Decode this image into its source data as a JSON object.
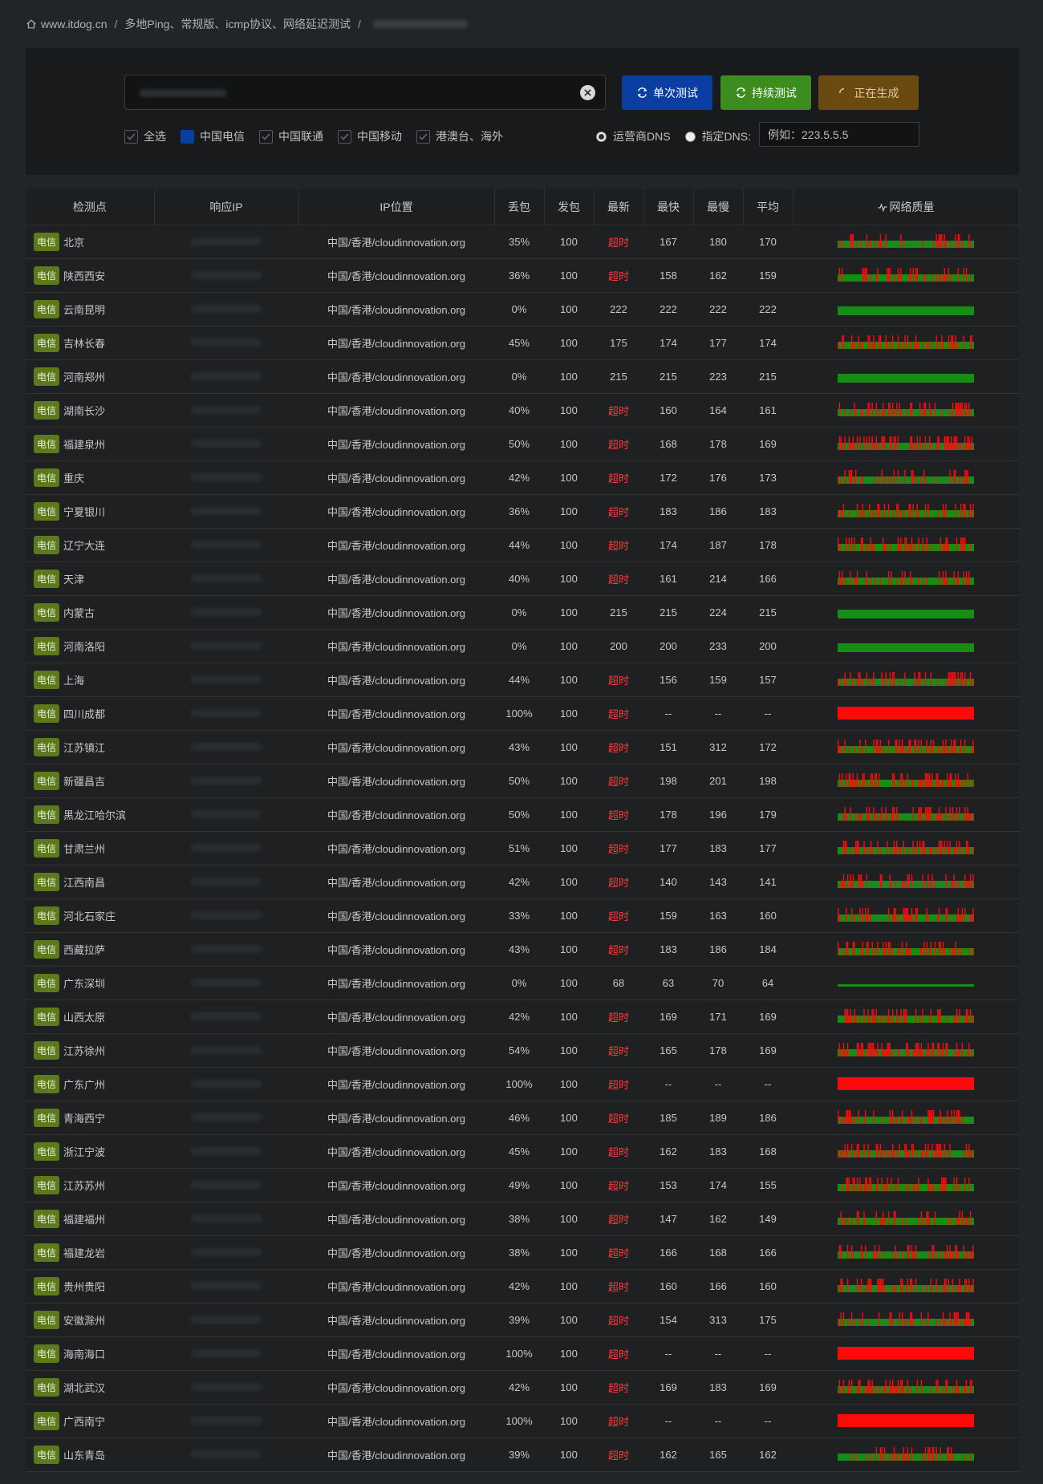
{
  "breadcrumb": {
    "home_icon": "home-icon",
    "items": [
      "www.itdog.cn",
      "多地Ping、常规版、icmp协议、网络延迟测试"
    ]
  },
  "search": {
    "value": "",
    "placeholder": ""
  },
  "buttons": {
    "single": "单次测试",
    "continuous": "持续测试",
    "generating": "正在生成"
  },
  "filters": {
    "items": [
      {
        "label": "全选",
        "checked": true,
        "style": "check"
      },
      {
        "label": "中国电信",
        "checked": true,
        "style": "filled"
      },
      {
        "label": "中国联通",
        "checked": true,
        "style": "check"
      },
      {
        "label": "中国移动",
        "checked": true,
        "style": "check"
      },
      {
        "label": "港澳台、海外",
        "checked": true,
        "style": "check"
      }
    ]
  },
  "dns": {
    "isp_label": "运营商DNS",
    "custom_label": "指定DNS:",
    "selected": "isp",
    "placeholder": "例如：223.5.5.5"
  },
  "table": {
    "headers": [
      "检测点",
      "响应IP",
      "IP位置",
      "丢包",
      "发包",
      "最新",
      "最快",
      "最慢",
      "平均",
      "网络质量"
    ],
    "badge": "电信",
    "rows": [
      {
        "city": "北京",
        "loc": "中国/香港/cloudinnovation.org",
        "loss": "35%",
        "sent": "100",
        "latest": "超时",
        "min": "167",
        "max": "180",
        "avg": "170",
        "quality": 0.35
      },
      {
        "city": "陕西西安",
        "loc": "中国/香港/cloudinnovation.org",
        "loss": "36%",
        "sent": "100",
        "latest": "超时",
        "min": "158",
        "max": "162",
        "avg": "159",
        "quality": 0.36
      },
      {
        "city": "云南昆明",
        "loc": "中国/香港/cloudinnovation.org",
        "loss": "0%",
        "sent": "100",
        "latest": "222",
        "min": "222",
        "max": "222",
        "avg": "222",
        "quality": 0
      },
      {
        "city": "吉林长春",
        "loc": "中国/香港/cloudinnovation.org",
        "loss": "45%",
        "sent": "100",
        "latest": "175",
        "min": "174",
        "max": "177",
        "avg": "174",
        "quality": 0.45
      },
      {
        "city": "河南郑州",
        "loc": "中国/香港/cloudinnovation.org",
        "loss": "0%",
        "sent": "100",
        "latest": "215",
        "min": "215",
        "max": "223",
        "avg": "215",
        "quality": 0
      },
      {
        "city": "湖南长沙",
        "loc": "中国/香港/cloudinnovation.org",
        "loss": "40%",
        "sent": "100",
        "latest": "超时",
        "min": "160",
        "max": "164",
        "avg": "161",
        "quality": 0.4
      },
      {
        "city": "福建泉州",
        "loc": "中国/香港/cloudinnovation.org",
        "loss": "50%",
        "sent": "100",
        "latest": "超时",
        "min": "168",
        "max": "178",
        "avg": "169",
        "quality": 0.5
      },
      {
        "city": "重庆",
        "loc": "中国/香港/cloudinnovation.org",
        "loss": "42%",
        "sent": "100",
        "latest": "超时",
        "min": "172",
        "max": "176",
        "avg": "173",
        "quality": 0.42
      },
      {
        "city": "宁夏银川",
        "loc": "中国/香港/cloudinnovation.org",
        "loss": "36%",
        "sent": "100",
        "latest": "超时",
        "min": "183",
        "max": "186",
        "avg": "183",
        "quality": 0.36
      },
      {
        "city": "辽宁大连",
        "loc": "中国/香港/cloudinnovation.org",
        "loss": "44%",
        "sent": "100",
        "latest": "超时",
        "min": "174",
        "max": "187",
        "avg": "178",
        "quality": 0.44
      },
      {
        "city": "天津",
        "loc": "中国/香港/cloudinnovation.org",
        "loss": "40%",
        "sent": "100",
        "latest": "超时",
        "min": "161",
        "max": "214",
        "avg": "166",
        "quality": 0.4
      },
      {
        "city": "内蒙古",
        "loc": "中国/香港/cloudinnovation.org",
        "loss": "0%",
        "sent": "100",
        "latest": "215",
        "min": "215",
        "max": "224",
        "avg": "215",
        "quality": 0
      },
      {
        "city": "河南洛阳",
        "loc": "中国/香港/cloudinnovation.org",
        "loss": "0%",
        "sent": "100",
        "latest": "200",
        "min": "200",
        "max": "233",
        "avg": "200",
        "quality": 0
      },
      {
        "city": "上海",
        "loc": "中国/香港/cloudinnovation.org",
        "loss": "44%",
        "sent": "100",
        "latest": "超时",
        "min": "156",
        "max": "159",
        "avg": "157",
        "quality": 0.44
      },
      {
        "city": "四川成都",
        "loc": "中国/香港/cloudinnovation.org",
        "loss": "100%",
        "sent": "100",
        "latest": "超时",
        "min": "--",
        "max": "--",
        "avg": "--",
        "quality": 1
      },
      {
        "city": "江苏镇江",
        "loc": "中国/香港/cloudinnovation.org",
        "loss": "43%",
        "sent": "100",
        "latest": "超时",
        "min": "151",
        "max": "312",
        "avg": "172",
        "quality": 0.43
      },
      {
        "city": "新疆昌吉",
        "loc": "中国/香港/cloudinnovation.org",
        "loss": "50%",
        "sent": "100",
        "latest": "超时",
        "min": "198",
        "max": "201",
        "avg": "198",
        "quality": 0.5
      },
      {
        "city": "黑龙江哈尔滨",
        "loc": "中国/香港/cloudinnovation.org",
        "loss": "50%",
        "sent": "100",
        "latest": "超时",
        "min": "178",
        "max": "196",
        "avg": "179",
        "quality": 0.5
      },
      {
        "city": "甘肃兰州",
        "loc": "中国/香港/cloudinnovation.org",
        "loss": "51%",
        "sent": "100",
        "latest": "超时",
        "min": "177",
        "max": "183",
        "avg": "177",
        "quality": 0.51
      },
      {
        "city": "江西南昌",
        "loc": "中国/香港/cloudinnovation.org",
        "loss": "42%",
        "sent": "100",
        "latest": "超时",
        "min": "140",
        "max": "143",
        "avg": "141",
        "quality": 0.42
      },
      {
        "city": "河北石家庄",
        "loc": "中国/香港/cloudinnovation.org",
        "loss": "33%",
        "sent": "100",
        "latest": "超时",
        "min": "159",
        "max": "163",
        "avg": "160",
        "quality": 0.33
      },
      {
        "city": "西藏拉萨",
        "loc": "中国/香港/cloudinnovation.org",
        "loss": "43%",
        "sent": "100",
        "latest": "超时",
        "min": "183",
        "max": "186",
        "avg": "184",
        "quality": 0.43
      },
      {
        "city": "广东深圳",
        "loc": "中国/香港/cloudinnovation.org",
        "loss": "0%",
        "sent": "100",
        "latest": "68",
        "min": "63",
        "max": "70",
        "avg": "64",
        "quality": 0
      },
      {
        "city": "山西太原",
        "loc": "中国/香港/cloudinnovation.org",
        "loss": "42%",
        "sent": "100",
        "latest": "超时",
        "min": "169",
        "max": "171",
        "avg": "169",
        "quality": 0.42
      },
      {
        "city": "江苏徐州",
        "loc": "中国/香港/cloudinnovation.org",
        "loss": "54%",
        "sent": "100",
        "latest": "超时",
        "min": "165",
        "max": "178",
        "avg": "169",
        "quality": 0.54
      },
      {
        "city": "广东广州",
        "loc": "中国/香港/cloudinnovation.org",
        "loss": "100%",
        "sent": "100",
        "latest": "超时",
        "min": "--",
        "max": "--",
        "avg": "--",
        "quality": 1
      },
      {
        "city": "青海西宁",
        "loc": "中国/香港/cloudinnovation.org",
        "loss": "46%",
        "sent": "100",
        "latest": "超时",
        "min": "185",
        "max": "189",
        "avg": "186",
        "quality": 0.46
      },
      {
        "city": "浙江宁波",
        "loc": "中国/香港/cloudinnovation.org",
        "loss": "45%",
        "sent": "100",
        "latest": "超时",
        "min": "162",
        "max": "183",
        "avg": "168",
        "quality": 0.45
      },
      {
        "city": "江苏苏州",
        "loc": "中国/香港/cloudinnovation.org",
        "loss": "49%",
        "sent": "100",
        "latest": "超时",
        "min": "153",
        "max": "174",
        "avg": "155",
        "quality": 0.49
      },
      {
        "city": "福建福州",
        "loc": "中国/香港/cloudinnovation.org",
        "loss": "38%",
        "sent": "100",
        "latest": "超时",
        "min": "147",
        "max": "162",
        "avg": "149",
        "quality": 0.38
      },
      {
        "city": "福建龙岩",
        "loc": "中国/香港/cloudinnovation.org",
        "loss": "38%",
        "sent": "100",
        "latest": "超时",
        "min": "166",
        "max": "168",
        "avg": "166",
        "quality": 0.38
      },
      {
        "city": "贵州贵阳",
        "loc": "中国/香港/cloudinnovation.org",
        "loss": "42%",
        "sent": "100",
        "latest": "超时",
        "min": "160",
        "max": "166",
        "avg": "160",
        "quality": 0.42
      },
      {
        "city": "安徽滁州",
        "loc": "中国/香港/cloudinnovation.org",
        "loss": "39%",
        "sent": "100",
        "latest": "超时",
        "min": "154",
        "max": "313",
        "avg": "175",
        "quality": 0.39
      },
      {
        "city": "海南海口",
        "loc": "中国/香港/cloudinnovation.org",
        "loss": "100%",
        "sent": "100",
        "latest": "超时",
        "min": "--",
        "max": "--",
        "avg": "--",
        "quality": 1
      },
      {
        "city": "湖北武汉",
        "loc": "中国/香港/cloudinnovation.org",
        "loss": "42%",
        "sent": "100",
        "latest": "超时",
        "min": "169",
        "max": "183",
        "avg": "169",
        "quality": 0.42
      },
      {
        "city": "广西南宁",
        "loc": "中国/香港/cloudinnovation.org",
        "loss": "100%",
        "sent": "100",
        "latest": "超时",
        "min": "--",
        "max": "--",
        "avg": "--",
        "quality": 1
      },
      {
        "city": "山东青岛",
        "loc": "中国/香港/cloudinnovation.org",
        "loss": "39%",
        "sent": "100",
        "latest": "超时",
        "min": "162",
        "max": "165",
        "avg": "162",
        "quality": 0.39
      }
    ]
  },
  "colors": {
    "good": "#178d17",
    "loss": "#ff0a0a",
    "timeout": "#ff3b3b",
    "badge": "#5c7a1c"
  }
}
